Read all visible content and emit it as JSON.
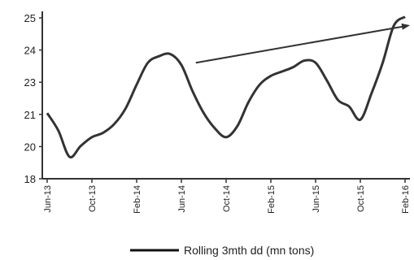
{
  "chart_data": {
    "type": "line",
    "title": "",
    "xlabel": "",
    "ylabel": "",
    "x": [
      "Jun 13",
      "Jul 13",
      "Aug 13",
      "Sep 13",
      "Oct 13",
      "Nov 13",
      "Dec 13",
      "Jan 14",
      "Feb 14",
      "Mar 14",
      "Apr 14",
      "May 14",
      "Jun 14",
      "Jul 14",
      "Aug 14",
      "Sep 14",
      "Oct 14",
      "Nov 14",
      "Dec 14",
      "Jan 15",
      "Feb 15",
      "Mar 15",
      "Apr 15",
      "May 15",
      "Jun 15",
      "Jul 15",
      "Aug 15",
      "Sep 15",
      "Oct 15",
      "Nov 15",
      "Dec 15",
      "Jan 16",
      "Feb 16"
    ],
    "x_tick_labels": [
      "Jun-13",
      "Oct-13",
      "Feb-14",
      "Jun-14",
      "Oct-14",
      "Feb-15",
      "Jun-15",
      "Oct-15",
      "Feb-16"
    ],
    "y_tick_labels": [
      "18",
      "20",
      "21",
      "23",
      "24",
      "25"
    ],
    "ylim": [
      18,
      25.5
    ],
    "grid": false,
    "legend_position": "bottom",
    "series": [
      {
        "name": "Rolling 3mth dd (mn tons)",
        "values": [
          21.0,
          20.2,
          19.0,
          19.5,
          19.9,
          20.1,
          20.5,
          21.2,
          22.3,
          23.3,
          23.6,
          23.7,
          23.2,
          22.0,
          21.0,
          20.3,
          19.9,
          20.4,
          21.5,
          22.3,
          22.7,
          22.9,
          23.1,
          23.4,
          23.3,
          22.5,
          21.6,
          21.3,
          20.7,
          21.9,
          23.3,
          25.0,
          25.4
        ],
        "color": "#333333"
      }
    ],
    "annotations": [
      {
        "type": "trend-arrow",
        "from": {
          "x": "Jul 14",
          "y": 23.3
        },
        "to": {
          "x": "Feb 16",
          "y": 25.0
        },
        "color": "#333333"
      }
    ]
  }
}
